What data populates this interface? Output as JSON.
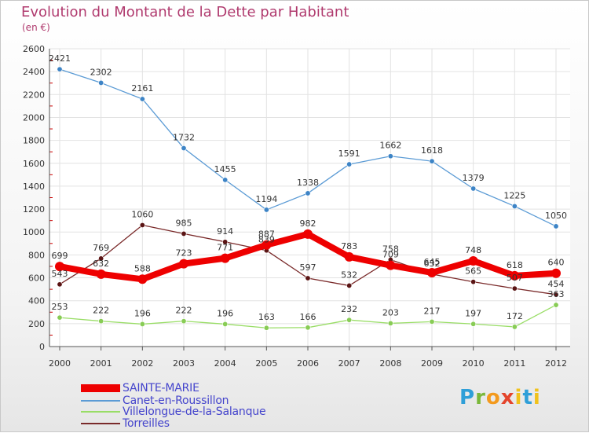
{
  "title": "Evolution du Montant de la Dette par Habitant",
  "subtitle": "(en €)",
  "logo_text": "Proxiti",
  "chart_data": {
    "type": "line",
    "x": [
      "2000",
      "2001",
      "2002",
      "2003",
      "2004",
      "2005",
      "2006",
      "2007",
      "2008",
      "2009",
      "2010",
      "2011",
      "2012"
    ],
    "ylim": [
      0,
      2600
    ],
    "yticks": [
      0,
      200,
      400,
      600,
      800,
      1000,
      1200,
      1400,
      1600,
      1800,
      2000,
      2200,
      2400,
      2600
    ],
    "grid": true,
    "legend_placement": "bottom-left",
    "series": [
      {
        "name": "SAINTE-MARIE",
        "color": "#ee0000",
        "width": 8,
        "values": [
          699,
          632,
          588,
          723,
          771,
          887,
          982,
          783,
          709,
          645,
          748,
          618,
          640
        ]
      },
      {
        "name": "Canet-en-Roussillon",
        "color": "#5b9bd5",
        "width": 1.3,
        "values": [
          2421,
          2302,
          2161,
          1732,
          1455,
          1194,
          1338,
          1591,
          1662,
          1618,
          1379,
          1225,
          1050
        ]
      },
      {
        "name": "Villelongue-de-la-Salanque",
        "color": "#99dd66",
        "width": 1.3,
        "values": [
          253,
          222,
          196,
          222,
          196,
          163,
          166,
          232,
          203,
          217,
          197,
          172,
          363
        ]
      },
      {
        "name": "Torreilles",
        "color": "#7a2a2a",
        "width": 1.3,
        "values": [
          543,
          769,
          1060,
          985,
          914,
          839,
          597,
          532,
          758,
          632,
          565,
          507,
          454
        ]
      }
    ]
  }
}
